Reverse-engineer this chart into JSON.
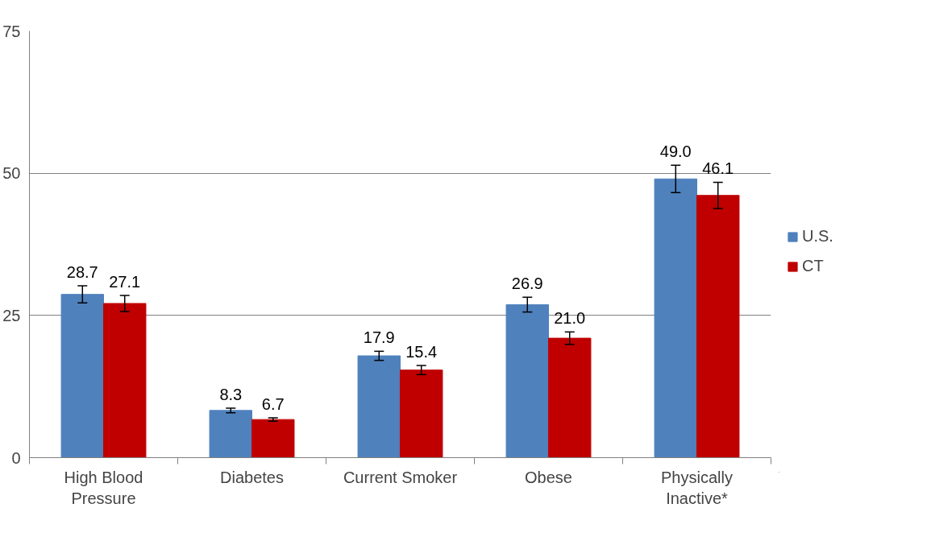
{
  "chart_data": {
    "type": "bar",
    "categories": [
      "High Blood Pressure",
      "Diabetes",
      "Current Smoker",
      "Obese",
      "Physically Inactive*"
    ],
    "series": [
      {
        "name": "U.S.",
        "color": "#4f81bd",
        "values": [
          28.7,
          8.3,
          17.9,
          26.9,
          49.0
        ],
        "value_labels": [
          "28.7",
          "8.3",
          "17.9",
          "26.9",
          "49.0"
        ],
        "errors": [
          1.5,
          0.4,
          0.8,
          1.3,
          2.4
        ]
      },
      {
        "name": "CT",
        "color": "#c00000",
        "values": [
          27.1,
          6.7,
          15.4,
          21.0,
          46.1
        ],
        "value_labels": [
          "27.1",
          "6.7",
          "15.4",
          "21.0",
          "46.1"
        ],
        "errors": [
          1.4,
          0.3,
          0.8,
          1.1,
          2.3
        ]
      }
    ],
    "ylim": [
      0,
      75
    ],
    "yticks": [
      0,
      25,
      50,
      75
    ],
    "grid": "y",
    "legend": "right"
  }
}
